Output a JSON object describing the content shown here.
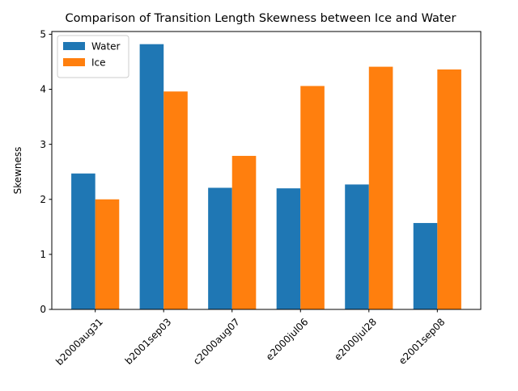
{
  "chart_data": {
    "type": "bar",
    "title": "Comparison of Transition Length Skewness between Ice and Water",
    "xlabel": "",
    "ylabel": "Skewness",
    "categories": [
      "b2000aug31",
      "b2001sep03",
      "c2000aug07",
      "e2000jul06",
      "e2000jul28",
      "e2001sep08"
    ],
    "series": [
      {
        "name": "Water",
        "color": "#1f77b4",
        "values": [
          2.47,
          4.82,
          2.21,
          2.2,
          2.27,
          1.57
        ]
      },
      {
        "name": "Ice",
        "color": "#ff7f0e",
        "values": [
          2.0,
          3.96,
          2.79,
          4.06,
          4.41,
          4.36
        ]
      }
    ],
    "ylim": [
      0,
      5.05
    ],
    "yticks": [
      0,
      1,
      2,
      3,
      4,
      5
    ],
    "grid": false,
    "legend_position": "top-left"
  }
}
